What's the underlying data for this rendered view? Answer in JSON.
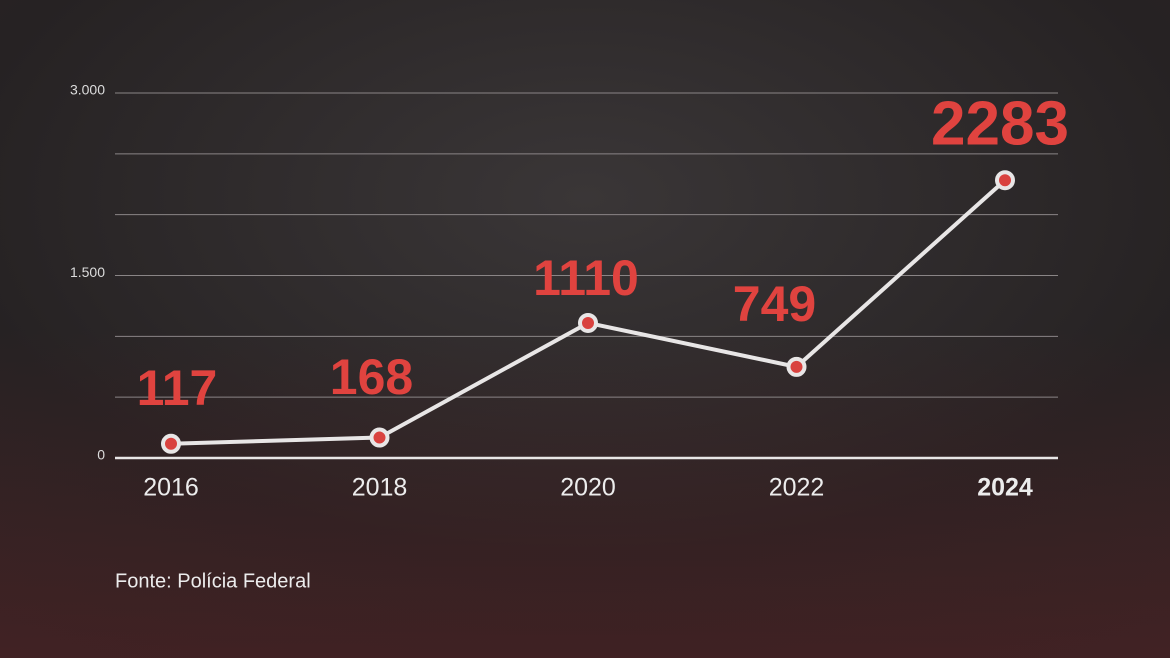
{
  "chart_data": {
    "type": "line",
    "categories": [
      "2016",
      "2018",
      "2020",
      "2022",
      "2024"
    ],
    "series": [
      {
        "values": [
          117,
          168,
          1110,
          749,
          2283
        ],
        "color": "#e8e6e6",
        "marker_color": "#d9423f",
        "label_color": "#e0433f"
      }
    ],
    "ylim": [
      0,
      3000
    ],
    "yticks": [
      0,
      {
        "value": 1500,
        "label": "1.500"
      },
      {
        "value": 3000,
        "label": "3.000"
      }
    ],
    "grid_lines": [
      500,
      1000,
      2000,
      2500
    ],
    "grid": true,
    "source": "Fonte: Polícia Federal"
  }
}
